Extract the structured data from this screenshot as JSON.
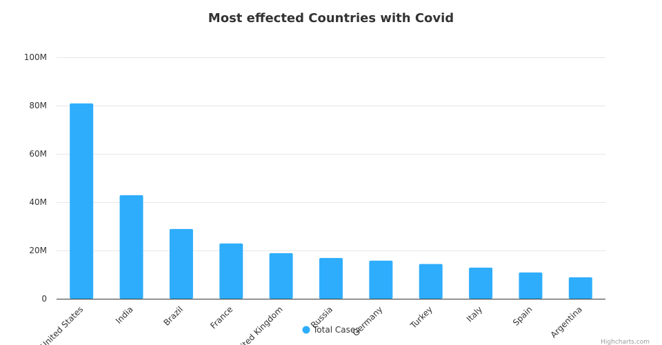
{
  "chart_data": {
    "type": "bar",
    "title": "Most effected Countries with Covid",
    "categories": [
      "United States",
      "India",
      "Brazil",
      "France",
      "United Kingdom",
      "Russia",
      "Germany",
      "Turkey",
      "Italy",
      "Spain",
      "Argentina"
    ],
    "series": [
      {
        "name": "Total Cases",
        "color": "#2eadfc",
        "values": [
          80.9,
          42.9,
          28.9,
          22.9,
          18.9,
          16.9,
          15.8,
          14.4,
          12.9,
          10.9,
          8.9
        ]
      }
    ],
    "values_unit": "M",
    "ylim": [
      0,
      100
    ],
    "yticks": [
      "0",
      "20M",
      "40M",
      "60M",
      "80M",
      "100M"
    ],
    "ytick_values": [
      0,
      20,
      40,
      60,
      80,
      100
    ],
    "grid": true,
    "legend_position": "bottom-center"
  },
  "credit": "Highcharts.com"
}
